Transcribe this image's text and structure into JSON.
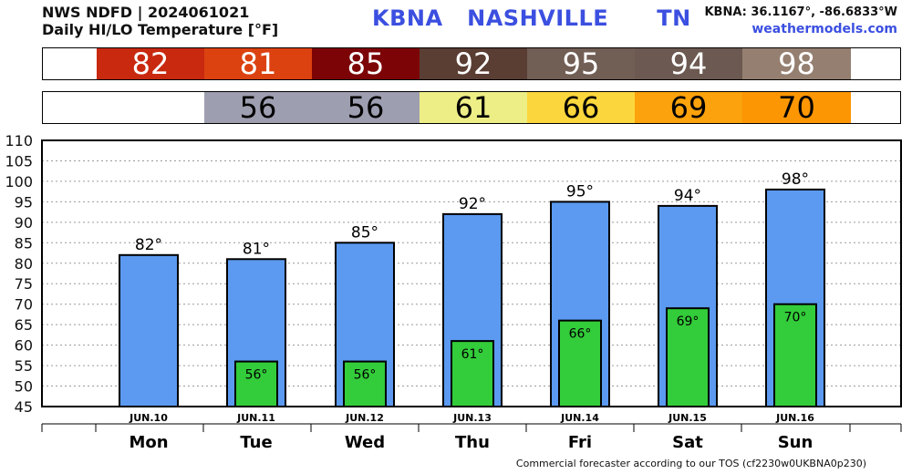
{
  "header": {
    "line1": "NWS NDFD | 2024061021",
    "line2": "Daily HI/LO Temperature [°F]",
    "station": "KBNA   NASHVILLE      TN",
    "coords": "KBNA: 36.1167°, -86.6833°W",
    "site": "weathermodels.com"
  },
  "strips": {
    "high": [
      {
        "value": "",
        "bg": "#ffffff",
        "color": "#ffffff"
      },
      {
        "value": "82",
        "bg": "#c8290f",
        "color": "#ffffff"
      },
      {
        "value": "81",
        "bg": "#dc4210",
        "color": "#ffffff"
      },
      {
        "value": "85",
        "bg": "#7c0406",
        "color": "#ffffff"
      },
      {
        "value": "92",
        "bg": "#5a3d33",
        "color": "#ffffff"
      },
      {
        "value": "95",
        "bg": "#715e55",
        "color": "#ffffff"
      },
      {
        "value": "94",
        "bg": "#6c5951",
        "color": "#ffffff"
      },
      {
        "value": "98",
        "bg": "#957f71",
        "color": "#ffffff"
      }
    ],
    "low": [
      {
        "value": "",
        "bg": "#ffffff",
        "color": "#000000"
      },
      {
        "value": "",
        "bg": "#ffffff",
        "color": "#000000"
      },
      {
        "value": "56",
        "bg": "#9e9eb1",
        "color": "#000000"
      },
      {
        "value": "56",
        "bg": "#9e9eb1",
        "color": "#000000"
      },
      {
        "value": "61",
        "bg": "#edee86",
        "color": "#000000"
      },
      {
        "value": "66",
        "bg": "#fbd73d",
        "color": "#000000"
      },
      {
        "value": "69",
        "bg": "#fba20c",
        "color": "#000000"
      },
      {
        "value": "70",
        "bg": "#fc9603",
        "color": "#000000"
      }
    ]
  },
  "chart_data": {
    "type": "bar",
    "title": "",
    "xlabel": "",
    "ylabel": "",
    "ylim": [
      45,
      110
    ],
    "yticks": [
      45,
      50,
      55,
      60,
      65,
      70,
      75,
      80,
      85,
      90,
      95,
      100,
      105,
      110
    ],
    "grid": true,
    "categories": [
      "Mon",
      "Tue",
      "Wed",
      "Thu",
      "Fri",
      "Sat",
      "Sun"
    ],
    "dates": [
      "JUN.10",
      "JUN.11",
      "JUN.12",
      "JUN.13",
      "JUN.14",
      "JUN.15",
      "JUN.16"
    ],
    "series": [
      {
        "values": [
          82,
          81,
          85,
          92,
          95,
          94,
          98
        ],
        "labels": [
          "82°",
          "81°",
          "85°",
          "92°",
          "95°",
          "94°",
          "98°"
        ],
        "color": "#5b9af0"
      },
      {
        "values": [
          null,
          56,
          56,
          61,
          66,
          69,
          70
        ],
        "labels": [
          "",
          "56°",
          "56°",
          "61°",
          "66°",
          "69°",
          "70°"
        ],
        "color": "#33cc3a"
      }
    ]
  },
  "footer": "Commercial forecaster according to our TOS (cf2230w0UKBNA0p230)"
}
